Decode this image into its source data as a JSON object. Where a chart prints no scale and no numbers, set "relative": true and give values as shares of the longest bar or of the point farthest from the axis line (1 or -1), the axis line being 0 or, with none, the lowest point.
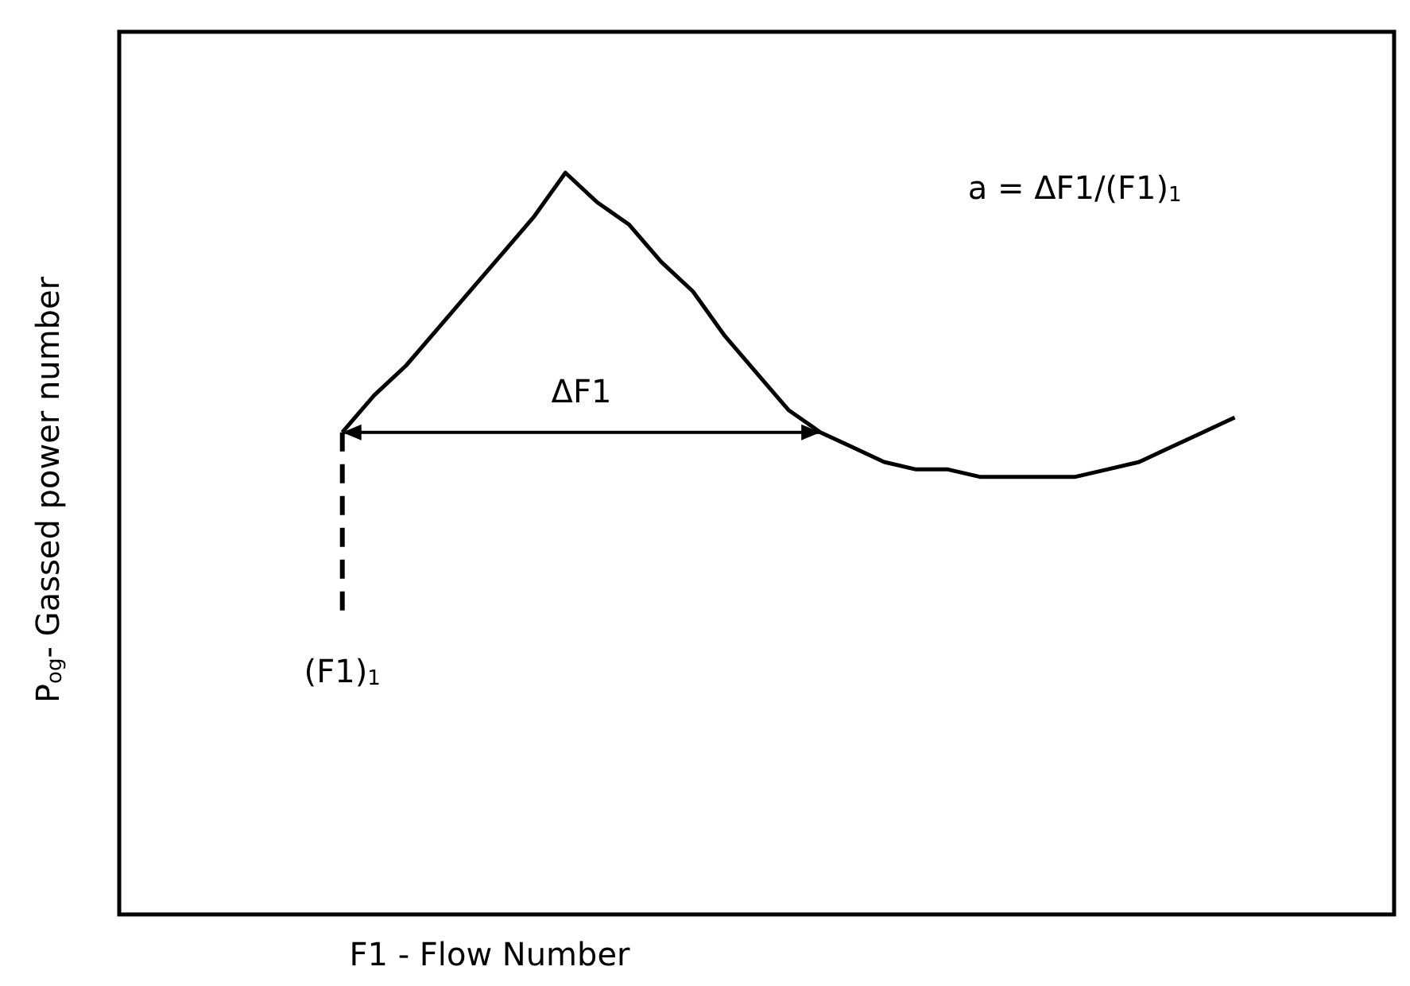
{
  "chart_data": {
    "type": "line",
    "relative": true,
    "xlabel": "F1 - Flow Number",
    "ylabel": "P$_{og}$- Gassed power number",
    "categories": [
      null,
      null,
      null,
      null,
      null,
      null,
      null,
      null,
      null,
      null,
      null,
      null,
      null,
      null,
      null,
      null,
      null,
      null,
      null,
      null,
      null,
      null,
      null,
      null,
      null,
      null,
      null,
      null,
      null,
      null,
      null,
      null,
      null,
      null,
      null,
      null,
      null,
      null,
      null,
      null,
      null
    ],
    "series": [
      {
        "color": "#000000",
        "values": [
          null,
          null,
          null,
          null,
          null,
          null,
          null,
          0.65,
          0.7,
          0.74,
          0.79,
          0.84,
          0.89,
          0.94,
          1,
          0.96,
          0.93,
          0.88,
          0.84,
          0.78,
          0.73,
          0.68,
          0.65,
          0.63,
          0.61,
          0.6,
          0.6,
          0.59,
          0.59,
          0.59,
          0.59,
          0.6,
          0.61,
          0.63,
          0.65,
          0.67,
          null,
          null,
          null,
          null,
          null
        ]
      }
    ],
    "annotations": [
      "ΔF1",
      "(F1)$_{1}$",
      "a = ΔF1/(F1)$_{1}$"
    ],
    "marker": "none",
    "line_style": "solid"
  }
}
